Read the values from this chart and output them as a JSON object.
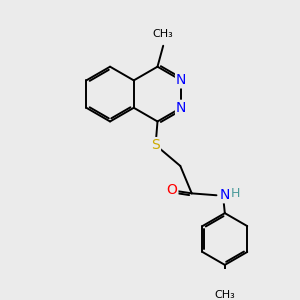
{
  "bg_color": "#ebebeb",
  "atom_colors": {
    "N": "#0000ff",
    "O": "#ff0000",
    "S": "#ccaa00",
    "C": "#000000",
    "H": "#4a9a9a"
  },
  "bond_color": "#000000",
  "bond_width": 1.4
}
